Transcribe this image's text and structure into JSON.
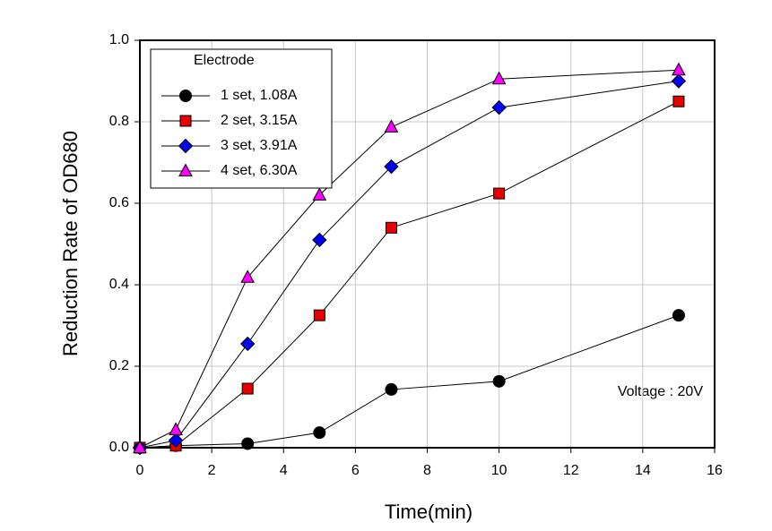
{
  "chart_data": {
    "type": "line",
    "xlabel": "Time(min)",
    "ylabel": "Reduction Rate of OD680",
    "x": [
      0,
      1,
      3,
      5,
      7,
      10,
      15
    ],
    "series": [
      {
        "name": "1 set, 1.08A",
        "color": "#000000",
        "marker": "circle",
        "values": [
          0,
          0.005,
          0.01,
          0.037,
          0.143,
          0.163,
          0.325
        ]
      },
      {
        "name": "2 set, 3.15A",
        "color": "#e80000",
        "marker": "square",
        "values": [
          0,
          0.005,
          0.145,
          0.325,
          0.54,
          0.624,
          0.85
        ]
      },
      {
        "name": "3 set, 3.91A",
        "color": "#0000f0",
        "marker": "diamond",
        "values": [
          0,
          0.018,
          0.255,
          0.51,
          0.69,
          0.835,
          0.9
        ]
      },
      {
        "name": "4 set, 6.30A",
        "color": "#ff00ff",
        "marker": "triangle",
        "values": [
          0,
          0.044,
          0.418,
          0.62,
          0.787,
          0.905,
          0.927
        ]
      }
    ],
    "legend_title": "Electrode",
    "legend_position": "upper left",
    "annotation": "Voltage : 20V",
    "xlim": [
      0,
      16
    ],
    "xticks": [
      0,
      2,
      4,
      6,
      8,
      10,
      12,
      14,
      16
    ],
    "ylim": [
      0,
      1
    ],
    "yticks": [
      {
        "value": 0,
        "label": "0.0"
      },
      0.2,
      0.4,
      0.6,
      0.8,
      {
        "value": 1,
        "label": "1.0"
      }
    ],
    "grid": true,
    "line_color": "#000000"
  }
}
